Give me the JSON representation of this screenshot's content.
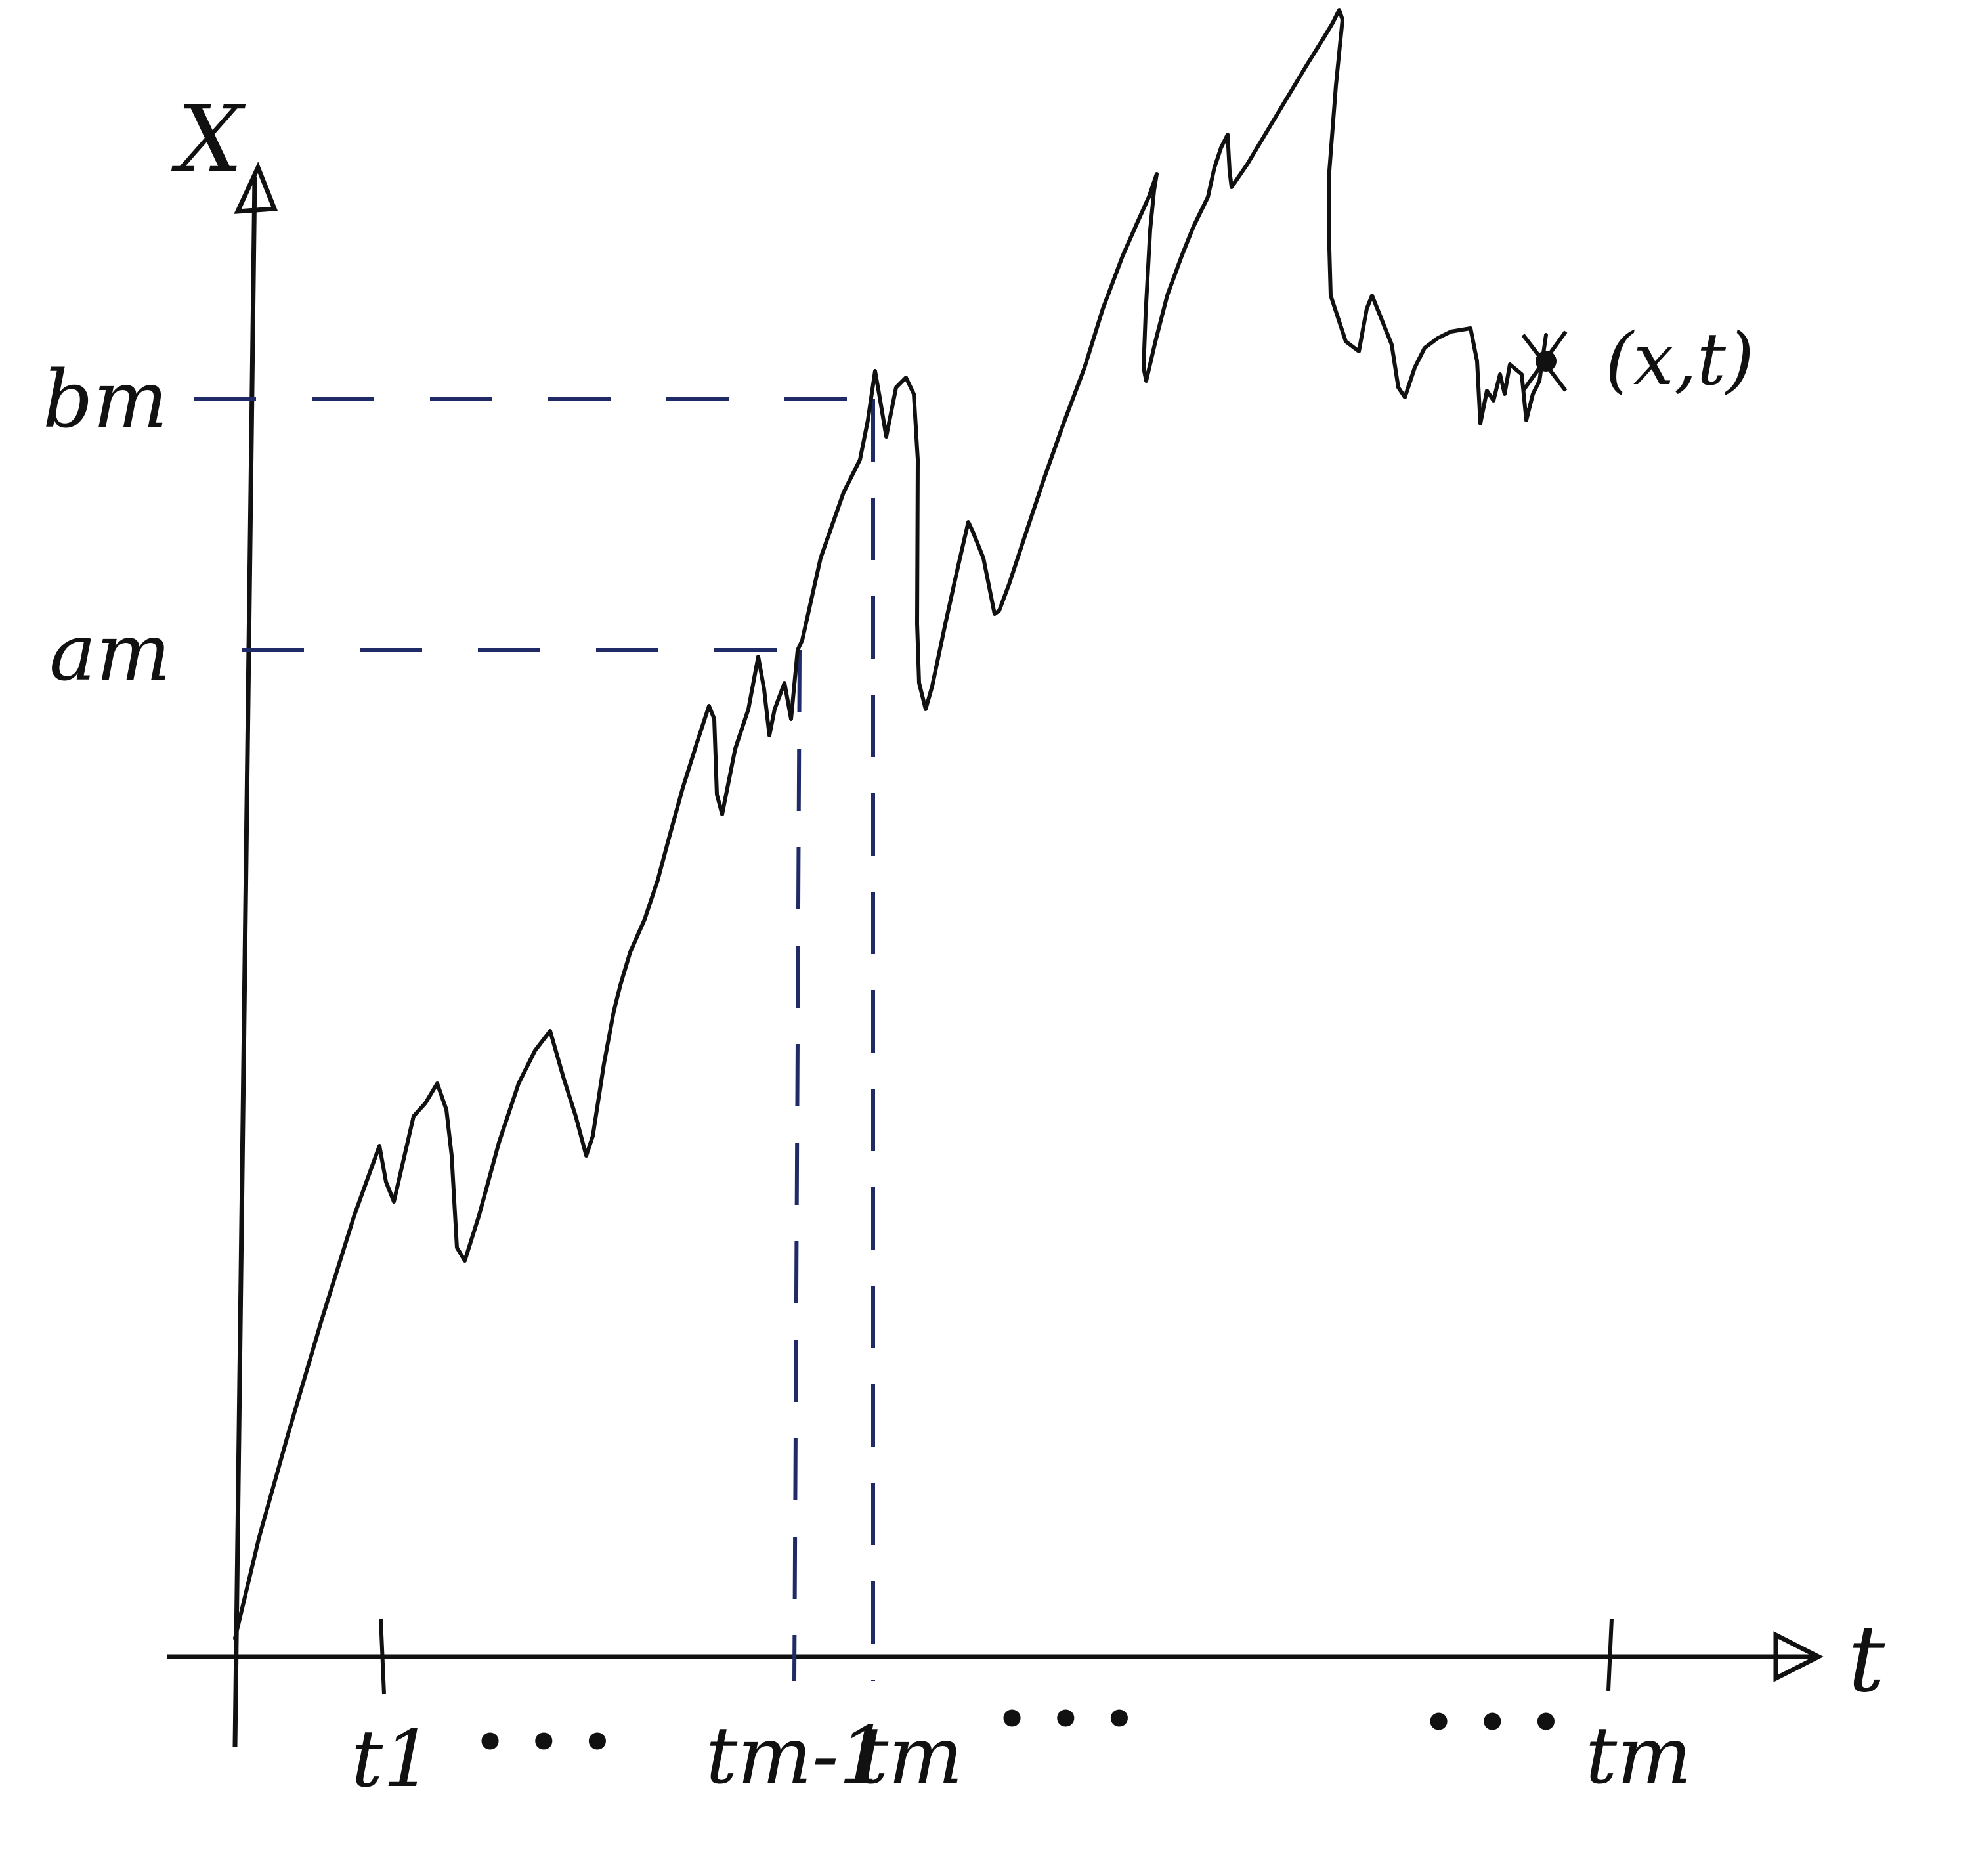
{
  "diagram": {
    "axes": {
      "y_label": "X",
      "x_label": "t"
    },
    "levels": [
      {
        "id": "b",
        "label": "bm"
      },
      {
        "id": "a",
        "label": "am"
      }
    ],
    "ticks": [
      {
        "id": "t1",
        "label": "t1"
      },
      {
        "id": "tm1",
        "label": "tm-1"
      },
      {
        "id": "tm",
        "label": "tm"
      },
      {
        "id": "tm_end",
        "label": "tm"
      }
    ],
    "ellipses": [
      "•  •  •",
      "•  •  •",
      "•  •  •"
    ],
    "endpoint_label": "(x,t)",
    "colors": {
      "ink": "#111111",
      "guide": "#1f2a66",
      "background": "#ffffff"
    }
  }
}
